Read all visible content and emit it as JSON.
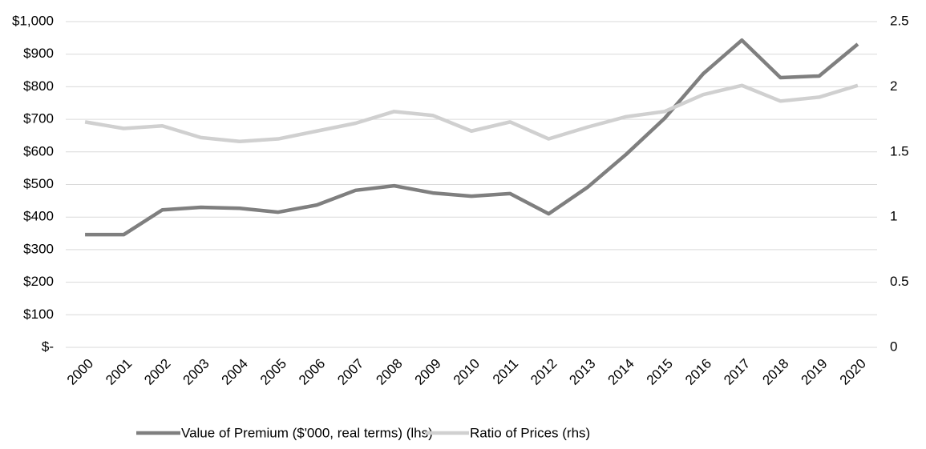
{
  "chart_data": {
    "type": "line",
    "categories": [
      "2000",
      "2001",
      "2002",
      "2003",
      "2004",
      "2005",
      "2006",
      "2007",
      "2008",
      "2009",
      "2010",
      "2011",
      "2012",
      "2013",
      "2014",
      "2015",
      "2016",
      "2017",
      "2018",
      "2019",
      "2020"
    ],
    "series": [
      {
        "name": "Value of Premium ($'000, real terms) (lhs)",
        "color": "#7f7f7f",
        "values": [
          346,
          346,
          422,
          430,
          427,
          415,
          437,
          482,
          496,
          474,
          464,
          472,
          410,
          491,
          592,
          703,
          840,
          943,
          828,
          833,
          931
        ]
      },
      {
        "name": "Ratio of Prices (rhs)",
        "color": "#d0d0d0",
        "axis": "y2",
        "values": [
          1.73,
          1.68,
          1.7,
          1.61,
          1.58,
          1.6,
          1.66,
          1.72,
          1.81,
          1.78,
          1.66,
          1.73,
          1.6,
          1.69,
          1.77,
          1.81,
          1.94,
          2.01,
          1.89,
          1.92,
          2.01
        ]
      }
    ],
    "ylim": [
      0,
      1000
    ],
    "yticks": [
      {
        "value": 0,
        "label": "$-"
      },
      {
        "value": 100,
        "label": "$100"
      },
      {
        "value": 200,
        "label": "$200"
      },
      {
        "value": 300,
        "label": "$300"
      },
      {
        "value": 400,
        "label": "$400"
      },
      {
        "value": 500,
        "label": "$500"
      },
      {
        "value": 600,
        "label": "$600"
      },
      {
        "value": 700,
        "label": "$700"
      },
      {
        "value": 800,
        "label": "$800"
      },
      {
        "value": 900,
        "label": "$900"
      },
      {
        "value": 1000,
        "label": "$1,000"
      }
    ],
    "y2lim": [
      0,
      2.5
    ],
    "y2ticks": [
      0,
      0.5,
      1,
      1.5,
      2,
      2.5
    ],
    "grid": true,
    "legend": "bottom"
  }
}
